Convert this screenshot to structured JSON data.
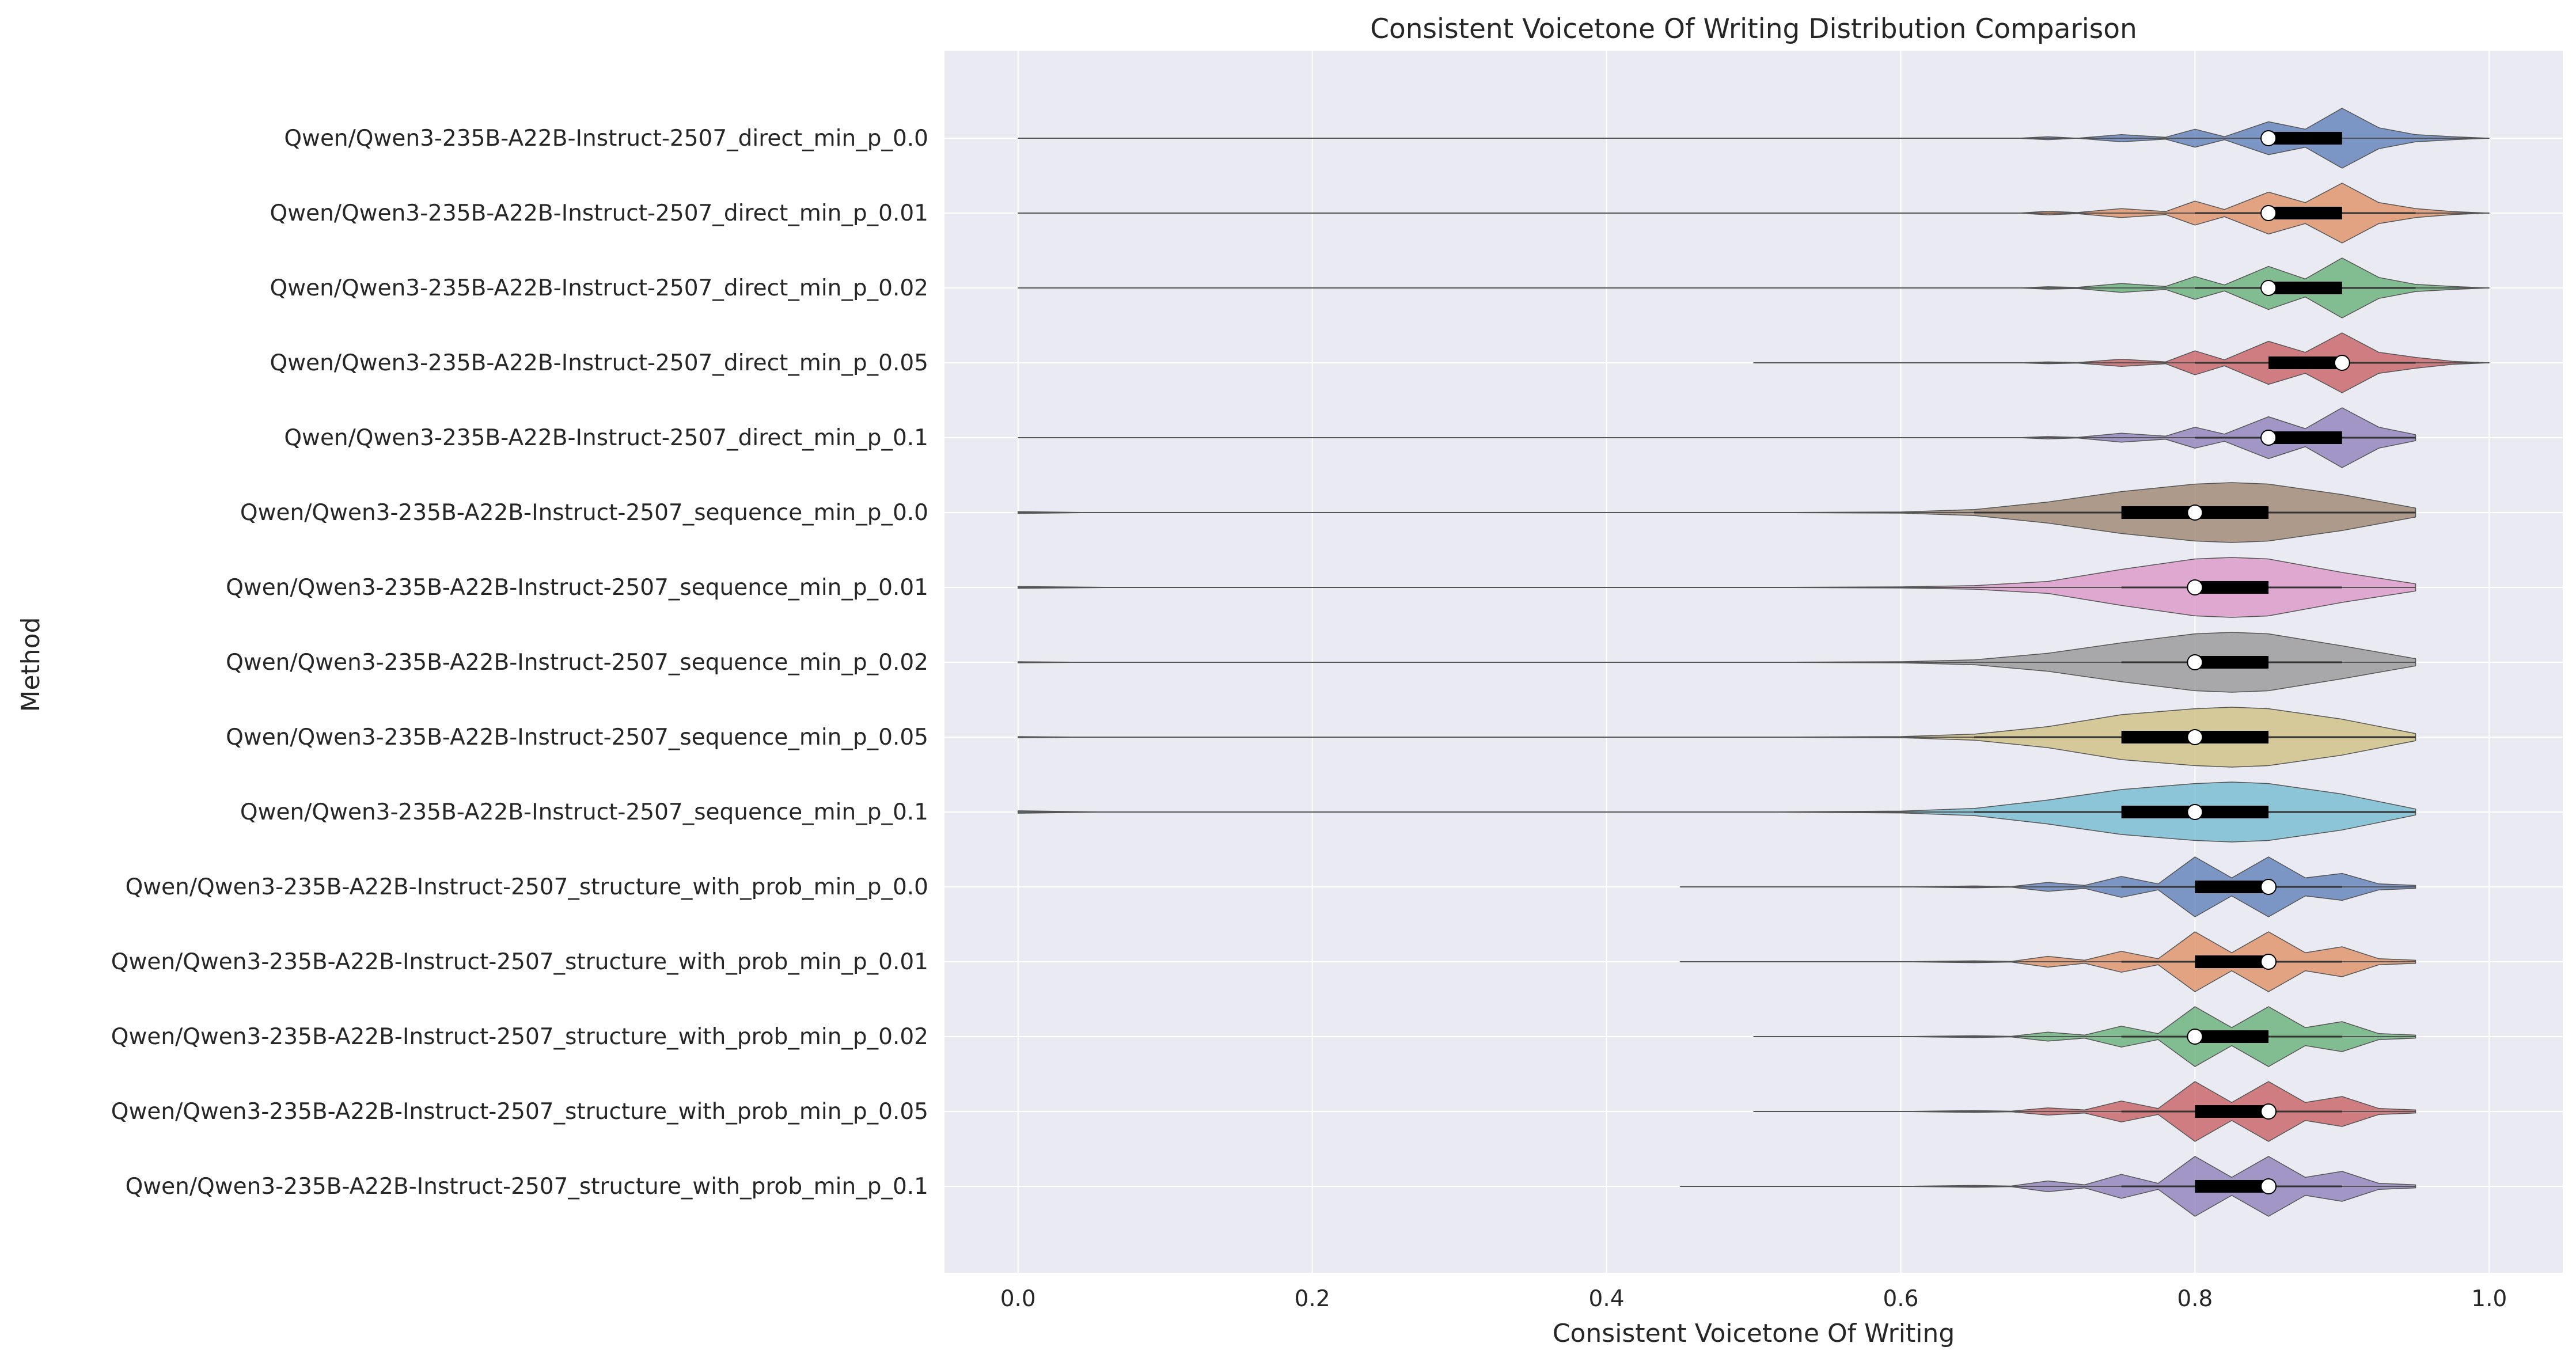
{
  "chart_data": {
    "type": "violin",
    "orientation": "horizontal",
    "title": "Consistent Voicetone Of Writing Distribution Comparison",
    "xlabel": "Consistent Voicetone Of Writing",
    "ylabel": "Method",
    "xlim": [
      -0.05,
      1.05
    ],
    "xticks": [
      "0.0",
      "0.2",
      "0.4",
      "0.6",
      "0.8",
      "1.0"
    ],
    "xtick_values": [
      0.0,
      0.2,
      0.4,
      0.6,
      0.8,
      1.0
    ],
    "grid": true,
    "background": "#eaeaf2",
    "categories": [
      "Qwen/Qwen3-235B-A22B-Instruct-2507_direct_min_p_0.0",
      "Qwen/Qwen3-235B-A22B-Instruct-2507_direct_min_p_0.01",
      "Qwen/Qwen3-235B-A22B-Instruct-2507_direct_min_p_0.02",
      "Qwen/Qwen3-235B-A22B-Instruct-2507_direct_min_p_0.05",
      "Qwen/Qwen3-235B-A22B-Instruct-2507_direct_min_p_0.1",
      "Qwen/Qwen3-235B-A22B-Instruct-2507_sequence_min_p_0.0",
      "Qwen/Qwen3-235B-A22B-Instruct-2507_sequence_min_p_0.01",
      "Qwen/Qwen3-235B-A22B-Instruct-2507_sequence_min_p_0.02",
      "Qwen/Qwen3-235B-A22B-Instruct-2507_sequence_min_p_0.05",
      "Qwen/Qwen3-235B-A22B-Instruct-2507_sequence_min_p_0.1",
      "Qwen/Qwen3-235B-A22B-Instruct-2507_structure_with_prob_min_p_0.0",
      "Qwen/Qwen3-235B-A22B-Instruct-2507_structure_with_prob_min_p_0.01",
      "Qwen/Qwen3-235B-A22B-Instruct-2507_structure_with_prob_min_p_0.02",
      "Qwen/Qwen3-235B-A22B-Instruct-2507_structure_with_prob_min_p_0.05",
      "Qwen/Qwen3-235B-A22B-Instruct-2507_structure_with_prob_min_p_0.1"
    ],
    "colors": [
      "#4c72b0",
      "#dd8452",
      "#55a868",
      "#c44e52",
      "#8172b3",
      "#937860",
      "#da8bc3",
      "#8c8c8c",
      "#ccb974",
      "#64b5cd",
      "#4c72b0",
      "#dd8452",
      "#55a868",
      "#c44e52",
      "#8172b3"
    ],
    "series": [
      {
        "min": 0.0,
        "q1": 0.85,
        "median": 0.85,
        "q3": 0.9,
        "max": 1.0,
        "whisker_low": 0.85,
        "whisker_high": 0.9,
        "density": [
          [
            0.0,
            0.0
          ],
          [
            0.68,
            0.0
          ],
          [
            0.7,
            0.05
          ],
          [
            0.72,
            0.0
          ],
          [
            0.75,
            0.12
          ],
          [
            0.78,
            0.03
          ],
          [
            0.8,
            0.3
          ],
          [
            0.82,
            0.05
          ],
          [
            0.85,
            0.55
          ],
          [
            0.875,
            0.3
          ],
          [
            0.9,
            1.0
          ],
          [
            0.925,
            0.35
          ],
          [
            0.95,
            0.12
          ],
          [
            0.975,
            0.05
          ],
          [
            1.0,
            0.0
          ]
        ]
      },
      {
        "min": 0.0,
        "q1": 0.85,
        "median": 0.85,
        "q3": 0.9,
        "max": 1.0,
        "whisker_low": 0.8,
        "whisker_high": 0.95,
        "density": [
          [
            0.0,
            0.0
          ],
          [
            0.68,
            0.0
          ],
          [
            0.7,
            0.06
          ],
          [
            0.72,
            0.02
          ],
          [
            0.75,
            0.15
          ],
          [
            0.78,
            0.05
          ],
          [
            0.8,
            0.4
          ],
          [
            0.82,
            0.12
          ],
          [
            0.85,
            0.7
          ],
          [
            0.875,
            0.35
          ],
          [
            0.9,
            1.0
          ],
          [
            0.925,
            0.35
          ],
          [
            0.95,
            0.15
          ],
          [
            0.975,
            0.05
          ],
          [
            1.0,
            0.0
          ]
        ]
      },
      {
        "min": 0.0,
        "q1": 0.85,
        "median": 0.85,
        "q3": 0.9,
        "max": 1.0,
        "whisker_low": 0.8,
        "whisker_high": 0.95,
        "density": [
          [
            0.0,
            0.0
          ],
          [
            0.68,
            0.0
          ],
          [
            0.7,
            0.04
          ],
          [
            0.72,
            0.02
          ],
          [
            0.75,
            0.15
          ],
          [
            0.78,
            0.05
          ],
          [
            0.8,
            0.38
          ],
          [
            0.82,
            0.1
          ],
          [
            0.85,
            0.72
          ],
          [
            0.875,
            0.3
          ],
          [
            0.9,
            1.0
          ],
          [
            0.925,
            0.35
          ],
          [
            0.95,
            0.12
          ],
          [
            0.975,
            0.05
          ],
          [
            1.0,
            0.0
          ]
        ]
      },
      {
        "min": 0.5,
        "q1": 0.85,
        "median": 0.9,
        "q3": 0.9,
        "max": 1.0,
        "whisker_low": 0.8,
        "whisker_high": 0.95,
        "density": [
          [
            0.5,
            0.0
          ],
          [
            0.68,
            0.0
          ],
          [
            0.7,
            0.03
          ],
          [
            0.72,
            0.01
          ],
          [
            0.75,
            0.12
          ],
          [
            0.78,
            0.03
          ],
          [
            0.8,
            0.4
          ],
          [
            0.82,
            0.1
          ],
          [
            0.85,
            0.72
          ],
          [
            0.875,
            0.35
          ],
          [
            0.9,
            1.0
          ],
          [
            0.925,
            0.35
          ],
          [
            0.95,
            0.18
          ],
          [
            0.975,
            0.05
          ],
          [
            1.0,
            0.0
          ]
        ]
      },
      {
        "min": 0.0,
        "q1": 0.85,
        "median": 0.85,
        "q3": 0.9,
        "max": 0.95,
        "whisker_low": 0.8,
        "whisker_high": 0.95,
        "density": [
          [
            0.0,
            0.0
          ],
          [
            0.68,
            0.0
          ],
          [
            0.7,
            0.04
          ],
          [
            0.72,
            0.01
          ],
          [
            0.75,
            0.15
          ],
          [
            0.78,
            0.05
          ],
          [
            0.8,
            0.35
          ],
          [
            0.82,
            0.12
          ],
          [
            0.85,
            0.7
          ],
          [
            0.875,
            0.3
          ],
          [
            0.9,
            1.0
          ],
          [
            0.925,
            0.35
          ],
          [
            0.95,
            0.1
          ]
        ]
      },
      {
        "min": 0.0,
        "q1": 0.75,
        "median": 0.8,
        "q3": 0.85,
        "max": 0.95,
        "whisker_low": 0.65,
        "whisker_high": 0.95,
        "density": [
          [
            0.0,
            0.03
          ],
          [
            0.05,
            0.0
          ],
          [
            0.5,
            0.0
          ],
          [
            0.6,
            0.02
          ],
          [
            0.65,
            0.1
          ],
          [
            0.7,
            0.35
          ],
          [
            0.75,
            0.7
          ],
          [
            0.8,
            0.95
          ],
          [
            0.825,
            1.0
          ],
          [
            0.85,
            0.95
          ],
          [
            0.9,
            0.6
          ],
          [
            0.95,
            0.15
          ]
        ]
      },
      {
        "min": 0.0,
        "q1": 0.8,
        "median": 0.8,
        "q3": 0.85,
        "max": 0.95,
        "whisker_low": 0.75,
        "whisker_high": 0.9,
        "density": [
          [
            0.0,
            0.03
          ],
          [
            0.07,
            0.0
          ],
          [
            0.5,
            0.0
          ],
          [
            0.6,
            0.02
          ],
          [
            0.65,
            0.06
          ],
          [
            0.7,
            0.2
          ],
          [
            0.75,
            0.6
          ],
          [
            0.8,
            0.95
          ],
          [
            0.825,
            1.0
          ],
          [
            0.85,
            0.95
          ],
          [
            0.9,
            0.5
          ],
          [
            0.95,
            0.12
          ]
        ]
      },
      {
        "min": 0.0,
        "q1": 0.8,
        "median": 0.8,
        "q3": 0.85,
        "max": 0.95,
        "whisker_low": 0.75,
        "whisker_high": 0.9,
        "density": [
          [
            0.0,
            0.02
          ],
          [
            0.05,
            0.0
          ],
          [
            0.5,
            0.0
          ],
          [
            0.6,
            0.02
          ],
          [
            0.65,
            0.08
          ],
          [
            0.7,
            0.3
          ],
          [
            0.75,
            0.65
          ],
          [
            0.8,
            0.95
          ],
          [
            0.825,
            1.0
          ],
          [
            0.85,
            0.95
          ],
          [
            0.9,
            0.55
          ],
          [
            0.95,
            0.12
          ]
        ]
      },
      {
        "min": 0.0,
        "q1": 0.75,
        "median": 0.8,
        "q3": 0.85,
        "max": 0.95,
        "whisker_low": 0.65,
        "whisker_high": 0.95,
        "density": [
          [
            0.0,
            0.02
          ],
          [
            0.05,
            0.0
          ],
          [
            0.5,
            0.0
          ],
          [
            0.6,
            0.02
          ],
          [
            0.65,
            0.1
          ],
          [
            0.7,
            0.35
          ],
          [
            0.75,
            0.75
          ],
          [
            0.8,
            0.95
          ],
          [
            0.825,
            1.0
          ],
          [
            0.85,
            0.95
          ],
          [
            0.9,
            0.6
          ],
          [
            0.95,
            0.12
          ]
        ]
      },
      {
        "min": 0.0,
        "q1": 0.75,
        "median": 0.8,
        "q3": 0.85,
        "max": 0.95,
        "whisker_low": 0.65,
        "whisker_high": 0.95,
        "density": [
          [
            0.0,
            0.04
          ],
          [
            0.06,
            0.0
          ],
          [
            0.5,
            0.0
          ],
          [
            0.6,
            0.03
          ],
          [
            0.65,
            0.12
          ],
          [
            0.7,
            0.4
          ],
          [
            0.75,
            0.75
          ],
          [
            0.8,
            0.95
          ],
          [
            0.825,
            1.0
          ],
          [
            0.85,
            0.95
          ],
          [
            0.9,
            0.6
          ],
          [
            0.95,
            0.1
          ]
        ]
      },
      {
        "min": 0.45,
        "q1": 0.8,
        "median": 0.85,
        "q3": 0.85,
        "max": 0.95,
        "whisker_low": 0.75,
        "whisker_high": 0.9,
        "density": [
          [
            0.45,
            0.0
          ],
          [
            0.6,
            0.0
          ],
          [
            0.65,
            0.03
          ],
          [
            0.675,
            0.01
          ],
          [
            0.7,
            0.15
          ],
          [
            0.725,
            0.05
          ],
          [
            0.75,
            0.35
          ],
          [
            0.775,
            0.1
          ],
          [
            0.8,
            1.0
          ],
          [
            0.825,
            0.3
          ],
          [
            0.85,
            1.0
          ],
          [
            0.875,
            0.3
          ],
          [
            0.9,
            0.45
          ],
          [
            0.925,
            0.1
          ],
          [
            0.95,
            0.05
          ]
        ]
      },
      {
        "min": 0.45,
        "q1": 0.8,
        "median": 0.85,
        "q3": 0.85,
        "max": 0.95,
        "whisker_low": 0.75,
        "whisker_high": 0.9,
        "density": [
          [
            0.45,
            0.0
          ],
          [
            0.6,
            0.0
          ],
          [
            0.65,
            0.03
          ],
          [
            0.675,
            0.01
          ],
          [
            0.7,
            0.18
          ],
          [
            0.725,
            0.05
          ],
          [
            0.75,
            0.35
          ],
          [
            0.775,
            0.1
          ],
          [
            0.8,
            1.0
          ],
          [
            0.825,
            0.3
          ],
          [
            0.85,
            1.0
          ],
          [
            0.875,
            0.3
          ],
          [
            0.9,
            0.5
          ],
          [
            0.925,
            0.1
          ],
          [
            0.95,
            0.05
          ]
        ]
      },
      {
        "min": 0.5,
        "q1": 0.8,
        "median": 0.8,
        "q3": 0.85,
        "max": 0.95,
        "whisker_low": 0.75,
        "whisker_high": 0.9,
        "density": [
          [
            0.5,
            0.0
          ],
          [
            0.6,
            0.0
          ],
          [
            0.65,
            0.03
          ],
          [
            0.675,
            0.01
          ],
          [
            0.7,
            0.15
          ],
          [
            0.725,
            0.05
          ],
          [
            0.75,
            0.35
          ],
          [
            0.775,
            0.1
          ],
          [
            0.8,
            1.0
          ],
          [
            0.825,
            0.3
          ],
          [
            0.85,
            1.0
          ],
          [
            0.875,
            0.3
          ],
          [
            0.9,
            0.5
          ],
          [
            0.925,
            0.1
          ],
          [
            0.95,
            0.05
          ]
        ]
      },
      {
        "min": 0.5,
        "q1": 0.8,
        "median": 0.85,
        "q3": 0.85,
        "max": 0.95,
        "whisker_low": 0.75,
        "whisker_high": 0.9,
        "density": [
          [
            0.5,
            0.0
          ],
          [
            0.6,
            0.0
          ],
          [
            0.65,
            0.03
          ],
          [
            0.675,
            0.01
          ],
          [
            0.7,
            0.12
          ],
          [
            0.725,
            0.05
          ],
          [
            0.75,
            0.35
          ],
          [
            0.775,
            0.1
          ],
          [
            0.8,
            1.0
          ],
          [
            0.825,
            0.3
          ],
          [
            0.85,
            1.0
          ],
          [
            0.875,
            0.3
          ],
          [
            0.9,
            0.5
          ],
          [
            0.925,
            0.1
          ],
          [
            0.95,
            0.05
          ]
        ]
      },
      {
        "min": 0.45,
        "q1": 0.8,
        "median": 0.85,
        "q3": 0.85,
        "max": 0.95,
        "whisker_low": 0.75,
        "whisker_high": 0.9,
        "density": [
          [
            0.45,
            0.0
          ],
          [
            0.6,
            0.0
          ],
          [
            0.65,
            0.03
          ],
          [
            0.675,
            0.01
          ],
          [
            0.7,
            0.18
          ],
          [
            0.725,
            0.05
          ],
          [
            0.75,
            0.4
          ],
          [
            0.775,
            0.1
          ],
          [
            0.8,
            1.0
          ],
          [
            0.825,
            0.3
          ],
          [
            0.85,
            1.0
          ],
          [
            0.875,
            0.3
          ],
          [
            0.9,
            0.5
          ],
          [
            0.925,
            0.1
          ],
          [
            0.95,
            0.05
          ]
        ]
      }
    ]
  }
}
